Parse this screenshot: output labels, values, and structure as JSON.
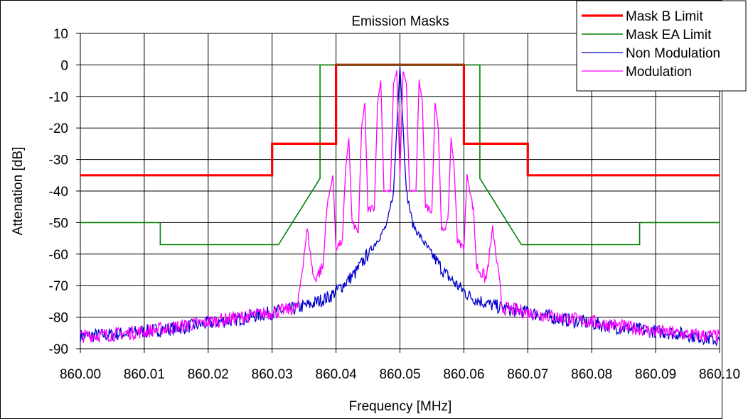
{
  "chart_data": {
    "type": "line",
    "title": "Emission Masks",
    "xlabel": "Frequency [MHz]",
    "ylabel": "Attenation [dB]",
    "xlim": [
      860.0,
      860.1
    ],
    "ylim": [
      -90,
      10
    ],
    "x_ticks": [
      "860.00",
      "860.01",
      "860.02",
      "860.03",
      "860.04",
      "860.05",
      "860.06",
      "860.07",
      "860.08",
      "860.09",
      "860.10"
    ],
    "y_ticks": [
      "10",
      "0",
      "-10",
      "-20",
      "-30",
      "-40",
      "-50",
      "-60",
      "-70",
      "-80",
      "-90"
    ],
    "grid": true,
    "legend_position": "top-right",
    "series": [
      {
        "name": "Mask B Limit",
        "color": "#ff0000",
        "points": [
          [
            860.0,
            -35
          ],
          [
            860.03,
            -35
          ],
          [
            860.03,
            -25
          ],
          [
            860.04,
            -25
          ],
          [
            860.04,
            0
          ],
          [
            860.06,
            0
          ],
          [
            860.06,
            -25
          ],
          [
            860.07,
            -25
          ],
          [
            860.07,
            -35
          ],
          [
            860.1,
            -35
          ]
        ]
      },
      {
        "name": "Mask EA Limit",
        "color": "#008000",
        "points": [
          [
            860.0,
            -50
          ],
          [
            860.0125,
            -50
          ],
          [
            860.0125,
            -57
          ],
          [
            860.031,
            -57
          ],
          [
            860.0375,
            -36
          ],
          [
            860.0375,
            0
          ],
          [
            860.0625,
            0
          ],
          [
            860.0625,
            -36
          ],
          [
            860.069,
            -57
          ],
          [
            860.0875,
            -57
          ],
          [
            860.0875,
            -50
          ],
          [
            860.1,
            -50
          ]
        ]
      },
      {
        "name": "Non Modulation",
        "color": "#0000cc",
        "points": [
          [
            860.0,
            -86
          ],
          [
            860.005,
            -85.5
          ],
          [
            860.01,
            -84.5
          ],
          [
            860.015,
            -83.5
          ],
          [
            860.02,
            -82
          ],
          [
            860.025,
            -80.5
          ],
          [
            860.03,
            -78.5
          ],
          [
            860.033,
            -77.5
          ],
          [
            860.036,
            -76
          ],
          [
            860.039,
            -73.5
          ],
          [
            860.041,
            -70
          ],
          [
            860.043,
            -66
          ],
          [
            860.045,
            -60
          ],
          [
            860.047,
            -54
          ],
          [
            860.048,
            -50.5
          ],
          [
            860.049,
            -40
          ],
          [
            860.0495,
            -20
          ],
          [
            860.05,
            0
          ],
          [
            860.0505,
            -20
          ],
          [
            860.051,
            -40
          ],
          [
            860.052,
            -50.5
          ],
          [
            860.053,
            -54
          ],
          [
            860.055,
            -60
          ],
          [
            860.057,
            -66
          ],
          [
            860.059,
            -70
          ],
          [
            860.061,
            -73.5
          ],
          [
            860.064,
            -76
          ],
          [
            860.067,
            -77.5
          ],
          [
            860.07,
            -78.5
          ],
          [
            860.075,
            -80.5
          ],
          [
            860.08,
            -82
          ],
          [
            860.085,
            -83.5
          ],
          [
            860.09,
            -84.5
          ],
          [
            860.095,
            -85.5
          ],
          [
            860.1,
            -87.5
          ]
        ]
      },
      {
        "name": "Modulation",
        "color": "#ff00ff",
        "points": [
          [
            860.0,
            -86
          ],
          [
            860.005,
            -85.5
          ],
          [
            860.01,
            -84.5
          ],
          [
            860.015,
            -83
          ],
          [
            860.02,
            -81.5
          ],
          [
            860.025,
            -80
          ],
          [
            860.03,
            -78.5
          ],
          [
            860.034,
            -77
          ],
          [
            860.0345,
            -68
          ],
          [
            860.0355,
            -52
          ],
          [
            860.0365,
            -68
          ],
          [
            860.038,
            -64
          ],
          [
            860.0385,
            -46
          ],
          [
            860.0395,
            -35
          ],
          [
            860.04,
            -58
          ],
          [
            860.041,
            -56
          ],
          [
            860.0415,
            -33
          ],
          [
            860.042,
            -23
          ],
          [
            860.0425,
            -50
          ],
          [
            860.0435,
            -53
          ],
          [
            860.044,
            -20
          ],
          [
            860.0445,
            -12
          ],
          [
            860.045,
            -46
          ],
          [
            860.046,
            -45
          ],
          [
            860.0465,
            -12
          ],
          [
            860.047,
            -5
          ],
          [
            860.0475,
            -40
          ],
          [
            860.0485,
            -40
          ],
          [
            860.049,
            -6
          ],
          [
            860.0495,
            -2
          ],
          [
            860.05,
            -35
          ],
          [
            860.0505,
            -2
          ],
          [
            860.051,
            -6
          ],
          [
            860.0515,
            -40
          ],
          [
            860.0525,
            -40
          ],
          [
            860.053,
            -5
          ],
          [
            860.0535,
            -12
          ],
          [
            860.054,
            -45
          ],
          [
            860.055,
            -46
          ],
          [
            860.0555,
            -12
          ],
          [
            860.056,
            -20
          ],
          [
            860.0565,
            -53
          ],
          [
            860.0575,
            -50
          ],
          [
            860.058,
            -23
          ],
          [
            860.0585,
            -33
          ],
          [
            860.059,
            -56
          ],
          [
            860.06,
            -58
          ],
          [
            860.0605,
            -35
          ],
          [
            860.0615,
            -46
          ],
          [
            860.062,
            -64
          ],
          [
            860.0635,
            -68
          ],
          [
            860.0645,
            -52
          ],
          [
            860.0655,
            -68
          ],
          [
            860.066,
            -77
          ],
          [
            860.07,
            -78.5
          ],
          [
            860.075,
            -80
          ],
          [
            860.08,
            -81.5
          ],
          [
            860.085,
            -83
          ],
          [
            860.09,
            -84.5
          ],
          [
            860.095,
            -85.5
          ],
          [
            860.1,
            -86
          ]
        ]
      }
    ]
  }
}
